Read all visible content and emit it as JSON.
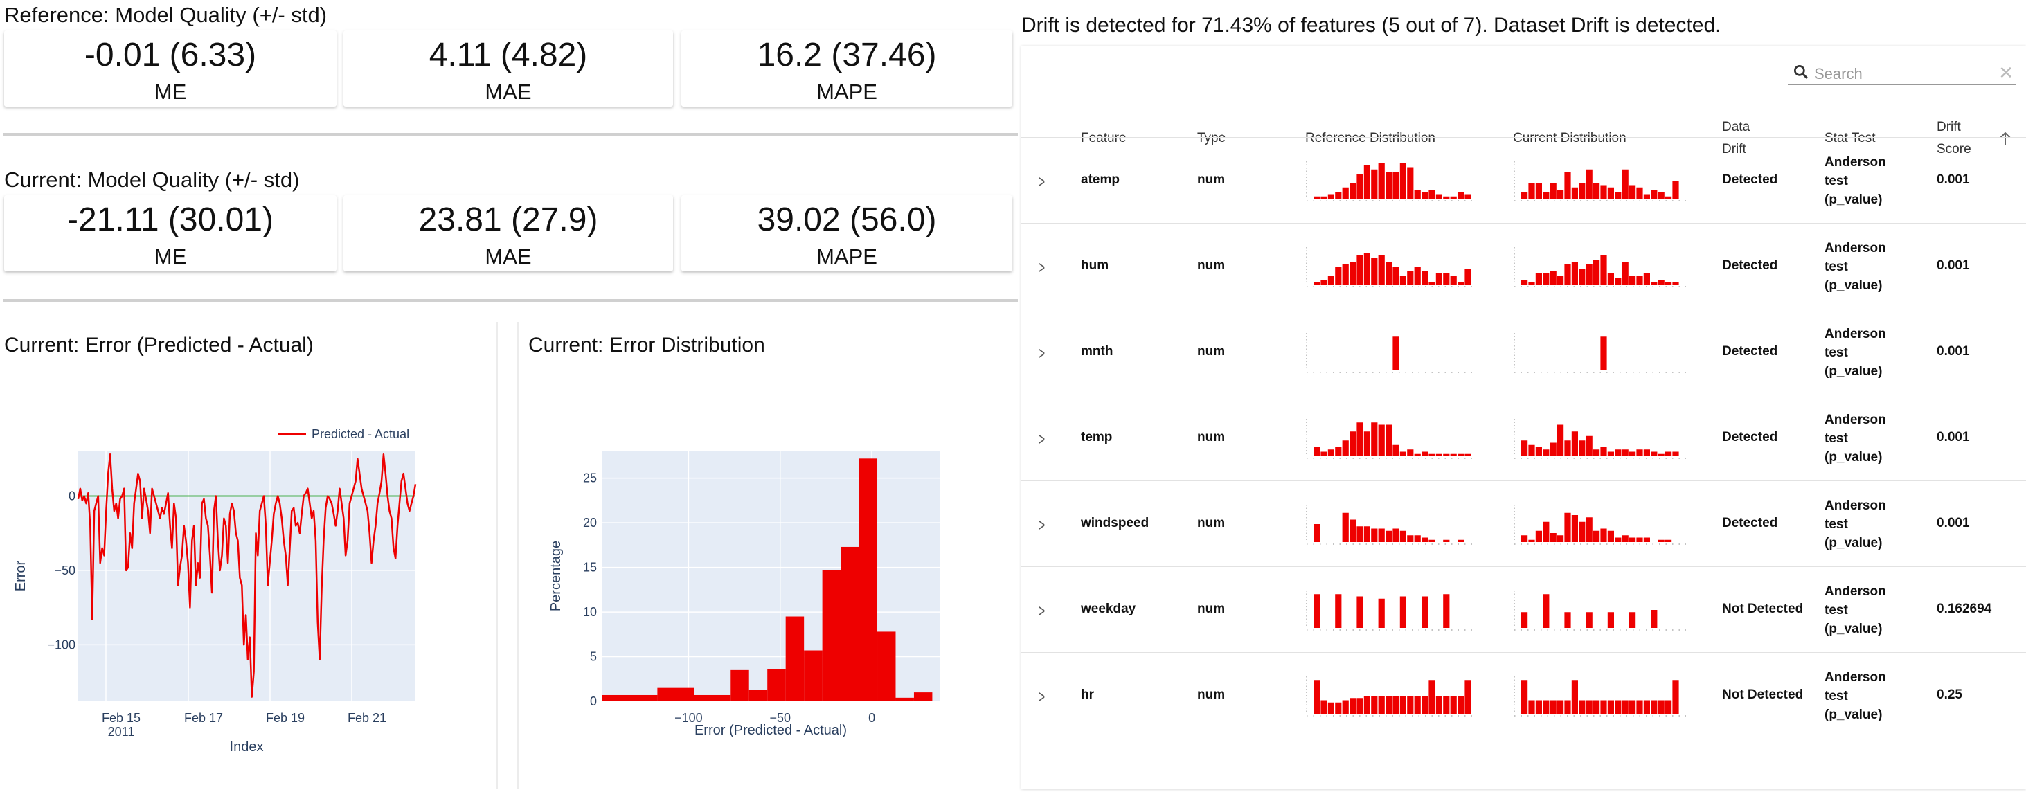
{
  "reference": {
    "title": "Reference: Model Quality (+/- std)",
    "metrics": [
      {
        "value": "-0.01 (6.33)",
        "label": "ME"
      },
      {
        "value": "4.11 (4.82)",
        "label": "MAE"
      },
      {
        "value": "16.2 (37.46)",
        "label": "MAPE"
      }
    ]
  },
  "current": {
    "title": "Current: Model Quality (+/- std)",
    "metrics": [
      {
        "value": "-21.11 (30.01)",
        "label": "ME"
      },
      {
        "value": "23.81 (27.9)",
        "label": "MAE"
      },
      {
        "value": "39.02 (56.0)",
        "label": "MAPE"
      }
    ]
  },
  "colors": {
    "accent": "#ee0000",
    "plot_bg": "#e5ecf6",
    "zero_line": "#4caf50",
    "axis_text": "#2a3f5f"
  },
  "chart_data": [
    {
      "type": "line",
      "title": "Current: Error (Predicted - Actual)",
      "xlabel": "Index",
      "ylabel": "Error",
      "x_ticks": [
        "Feb 15\n2011",
        "Feb 17",
        "Feb 19",
        "Feb 21"
      ],
      "y_ticks": [
        0,
        -50,
        -100
      ],
      "ylim": [
        -138,
        30
      ],
      "legend": "top-right",
      "grid": true,
      "series": [
        {
          "name": "Predicted - Actual",
          "color": "#ee0000",
          "values": [
            -2,
            5,
            -3,
            0,
            -5,
            2,
            -20,
            -83,
            -10,
            -5,
            0,
            -45,
            -35,
            -40,
            -10,
            15,
            28,
            5,
            -10,
            -5,
            -15,
            -2,
            0,
            5,
            -50,
            -48,
            -25,
            -35,
            -5,
            5,
            15,
            10,
            -15,
            5,
            -2,
            -10,
            -25,
            5,
            0,
            -5,
            -10,
            -15,
            -8,
            -12,
            -5,
            2,
            -20,
            -35,
            -5,
            -15,
            -60,
            -48,
            -40,
            -20,
            -30,
            -45,
            -75,
            -30,
            -20,
            -60,
            -45,
            -55,
            -5,
            -2,
            -15,
            -20,
            -40,
            -65,
            -10,
            0,
            -30,
            -50,
            -40,
            -15,
            -20,
            -45,
            -12,
            -5,
            -10,
            -25,
            -30,
            -55,
            -60,
            -100,
            -80,
            -110,
            -95,
            -135,
            -118,
            -25,
            -40,
            -10,
            -5,
            0,
            -20,
            -60,
            -45,
            -30,
            -12,
            -5,
            0,
            -5,
            -15,
            -30,
            -40,
            -60,
            -35,
            -10,
            -8,
            -20,
            -18,
            -25,
            -12,
            0,
            2,
            5,
            -5,
            -15,
            -10,
            -30,
            -85,
            -110,
            -62,
            -30,
            -8,
            0,
            -2,
            -5,
            -12,
            -20,
            -10,
            5,
            -5,
            -15,
            -40,
            -30,
            -5,
            0,
            5,
            10,
            25,
            15,
            5,
            0,
            -5,
            -10,
            -25,
            -45,
            -30,
            -20,
            -5,
            2,
            10,
            28,
            15,
            0,
            -10,
            -15,
            -35,
            -42,
            -20,
            -5,
            10,
            15,
            5,
            -5,
            -10,
            -5,
            0,
            8
          ]
        },
        {
          "name": "zero",
          "color": "#4caf50",
          "values": [
            0,
            0
          ]
        }
      ]
    },
    {
      "type": "bar",
      "title": "Current: Error Distribution",
      "xlabel": "Error (Predicted - Actual)",
      "ylabel": "Percentage",
      "x_ticks": [
        -100,
        -50,
        0
      ],
      "y_ticks": [
        0,
        5,
        10,
        15,
        20,
        25
      ],
      "xlim": [
        -147,
        37
      ],
      "ylim": [
        0,
        28
      ],
      "bins": [
        {
          "x0": -147,
          "x1": -117,
          "y": 0.7
        },
        {
          "x0": -117,
          "x1": -97,
          "y": 1.5
        },
        {
          "x0": -97,
          "x1": -87,
          "y": 0.7
        },
        {
          "x0": -87,
          "x1": -77,
          "y": 0.7
        },
        {
          "x0": -77,
          "x1": -67,
          "y": 3.5
        },
        {
          "x0": -67,
          "x1": -57,
          "y": 1.3
        },
        {
          "x0": -57,
          "x1": -47,
          "y": 3.6
        },
        {
          "x0": -47,
          "x1": -37,
          "y": 9.5
        },
        {
          "x0": -37,
          "x1": -27,
          "y": 5.7
        },
        {
          "x0": -27,
          "x1": -17,
          "y": 14.7
        },
        {
          "x0": -17,
          "x1": -7,
          "y": 17.3
        },
        {
          "x0": -7,
          "x1": 3,
          "y": 27.2
        },
        {
          "x0": 3,
          "x1": 13,
          "y": 7.8
        },
        {
          "x0": 13,
          "x1": 23,
          "y": 0.4
        },
        {
          "x0": 23,
          "x1": 33,
          "y": 1.0
        }
      ]
    }
  ],
  "drift": {
    "summary": "Drift is detected for 71.43% of features (5 out of 7). Dataset Drift is detected.",
    "search_placeholder": "Search",
    "headers": {
      "feature": "Feature",
      "type": "Type",
      "ref_dist": "Reference Distribution",
      "cur_dist": "Current Distribution",
      "data_drift_1": "Data",
      "data_drift_2": "Drift",
      "stat_test": "Stat Test",
      "drift_score_1": "Drift",
      "drift_score_2": "Score"
    },
    "rows": [
      {
        "feature": "atemp",
        "type": "num",
        "drift": "Detected",
        "stat1": "Anderson",
        "stat2": "test",
        "stat3": "(p_value)",
        "score": "0.001",
        "ref": [
          1,
          1,
          2,
          3,
          5,
          7,
          11,
          15,
          13,
          16,
          12,
          12,
          16,
          14,
          4,
          3,
          4,
          2,
          1,
          1,
          3,
          2
        ],
        "cur": [
          3,
          7,
          7,
          3,
          7,
          4,
          12,
          5,
          7,
          13,
          7,
          6,
          5,
          3,
          13,
          6,
          5,
          2,
          4,
          3,
          1,
          8
        ]
      },
      {
        "feature": "hum",
        "type": "num",
        "drift": "Detected",
        "stat1": "Anderson",
        "stat2": "test",
        "stat3": "(p_value)",
        "score": "0.001",
        "ref": [
          1,
          2,
          4,
          8,
          9,
          10,
          13,
          14,
          12,
          13,
          10,
          8,
          4,
          6,
          8,
          6,
          1,
          5,
          5,
          4,
          1,
          7
        ],
        "cur": [
          2,
          1,
          5,
          5,
          6,
          4,
          9,
          10,
          7,
          9,
          11,
          13,
          5,
          3,
          10,
          4,
          4,
          5,
          1,
          2,
          1,
          1
        ]
      },
      {
        "feature": "mnth",
        "type": "num",
        "drift": "Detected",
        "stat1": "Anderson",
        "stat2": "test",
        "stat3": "(p_value)",
        "score": "0.001",
        "ref": [
          0,
          0,
          0,
          0,
          0,
          0,
          0,
          0,
          0,
          0,
          0,
          15,
          0,
          0,
          0,
          0,
          0,
          0,
          0,
          0,
          0,
          0
        ],
        "cur": [
          0,
          0,
          0,
          0,
          0,
          0,
          0,
          0,
          0,
          0,
          0,
          15,
          0,
          0,
          0,
          0,
          0,
          0,
          0,
          0,
          0,
          0
        ]
      },
      {
        "feature": "temp",
        "type": "num",
        "drift": "Detected",
        "stat1": "Anderson",
        "stat2": "test",
        "stat3": "(p_value)",
        "score": "0.001",
        "ref": [
          4,
          2,
          3,
          4,
          7,
          11,
          15,
          11,
          15,
          14,
          14,
          5,
          2,
          3,
          1,
          2,
          1,
          1,
          1,
          1,
          1,
          1
        ],
        "cur": [
          7,
          5,
          4,
          3,
          6,
          14,
          7,
          11,
          7,
          9,
          3,
          4,
          2,
          3,
          3,
          2,
          3,
          3,
          2,
          1,
          2,
          2
        ]
      },
      {
        "feature": "windspeed",
        "type": "num",
        "drift": "Detected",
        "stat1": "Anderson",
        "stat2": "test",
        "stat3": "(p_value)",
        "score": "0.001",
        "ref": [
          8,
          0,
          0,
          0,
          13,
          10,
          7,
          7,
          6,
          6,
          5,
          6,
          5,
          3,
          3,
          2,
          1,
          0,
          1,
          0,
          1,
          0
        ],
        "cur": [
          3,
          1,
          5,
          9,
          4,
          3,
          13,
          12,
          9,
          11,
          5,
          6,
          5,
          2,
          3,
          2,
          2,
          2,
          0,
          1,
          1,
          0
        ]
      },
      {
        "feature": "weekday",
        "type": "num",
        "drift": "Not Detected",
        "stat1": "Anderson",
        "stat2": "test",
        "stat3": "(p_value)",
        "score": "0.162694",
        "ref": [
          15,
          0,
          0,
          15,
          0,
          0,
          14,
          0,
          0,
          13,
          0,
          0,
          14,
          0,
          0,
          14,
          0,
          0,
          15,
          0,
          0,
          0
        ],
        "cur": [
          7,
          0,
          0,
          15,
          0,
          0,
          7,
          0,
          0,
          7,
          0,
          0,
          7,
          0,
          0,
          7,
          0,
          0,
          8,
          0,
          0,
          0
        ]
      },
      {
        "feature": "hr",
        "type": "num",
        "drift": "Not Detected",
        "stat1": "Anderson",
        "stat2": "test",
        "stat3": "(p_value)",
        "score": "0.25",
        "ref": [
          15,
          6,
          5,
          5,
          6,
          7,
          7,
          8,
          8,
          8,
          8,
          8,
          8,
          8,
          8,
          8,
          15,
          8,
          8,
          8,
          8,
          15
        ],
        "cur": [
          15,
          6,
          6,
          6,
          6,
          6,
          6,
          15,
          6,
          6,
          6,
          6,
          6,
          6,
          6,
          6,
          6,
          6,
          6,
          6,
          6,
          15
        ]
      }
    ]
  }
}
